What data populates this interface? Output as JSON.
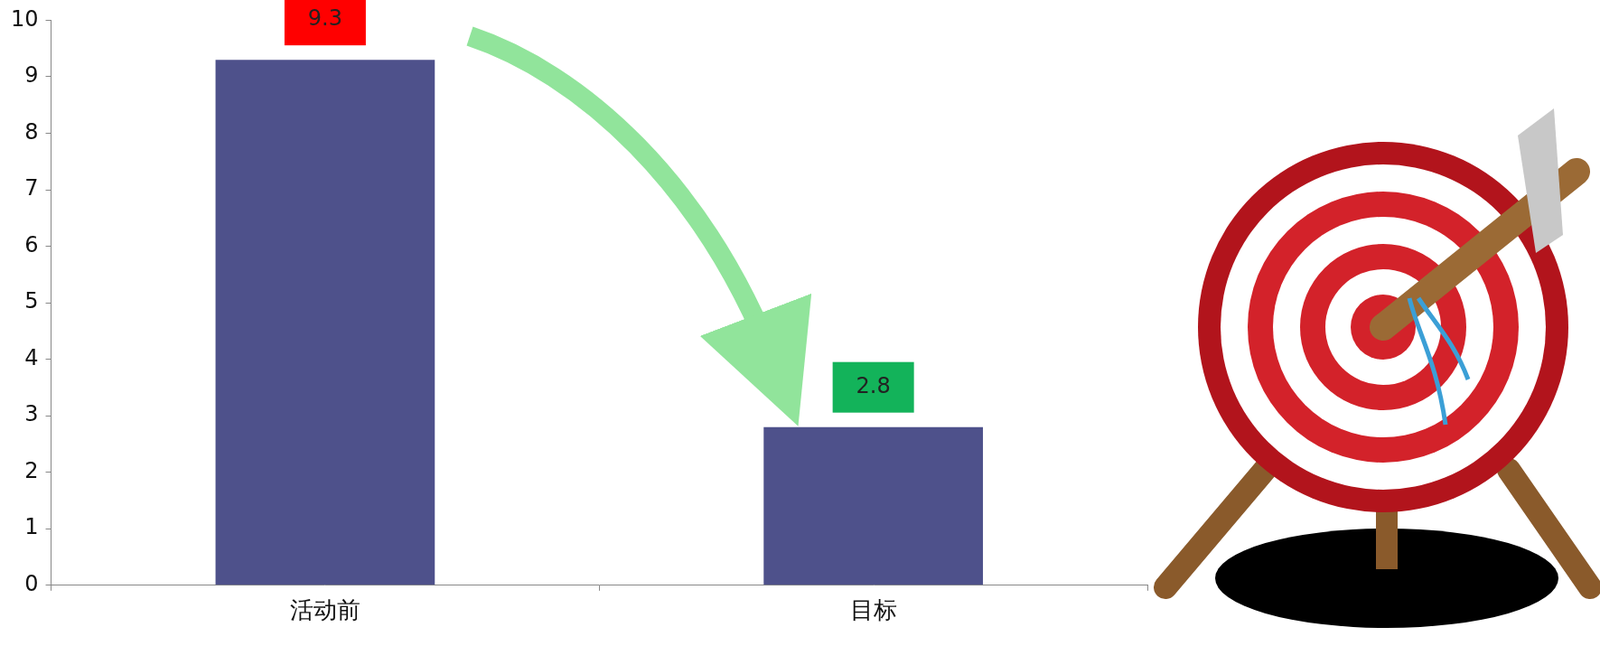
{
  "chart_data": {
    "type": "bar",
    "categories": [
      "活动前",
      "目标"
    ],
    "values": [
      9.3,
      2.8
    ],
    "color": "#4e518b",
    "ylim": [
      0,
      10
    ],
    "yticks": [
      0,
      1,
      2,
      3,
      4,
      5,
      6,
      7,
      8,
      9,
      10
    ],
    "grid": false,
    "data_labels": true
  }
}
